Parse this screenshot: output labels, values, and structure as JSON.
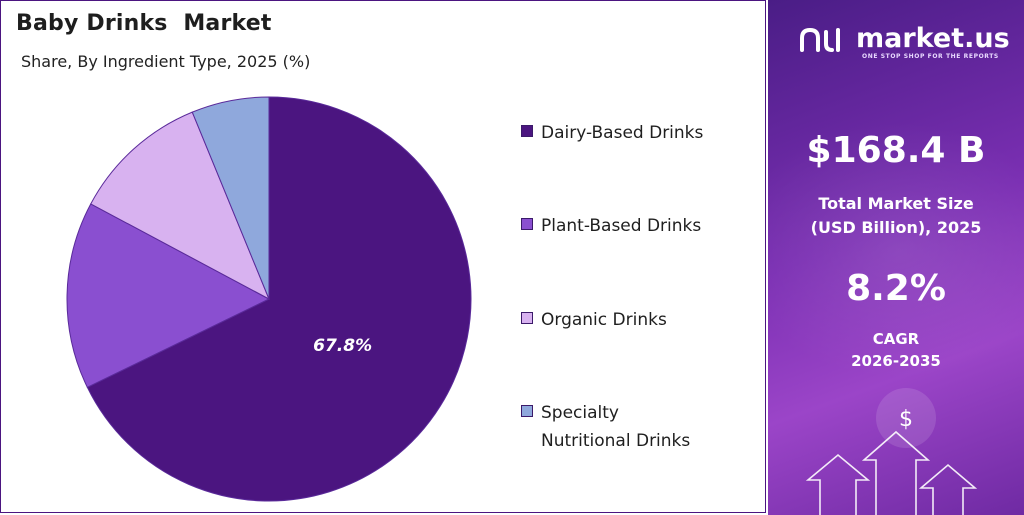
{
  "title": "Baby Drinks  Market",
  "subtitle": "Share, By Ingredient Type, 2025 (%)",
  "chart_data": {
    "type": "pie",
    "title": "Baby Drinks  Market",
    "subtitle": "Share, By Ingredient Type, 2025 (%)",
    "categories": [
      "Dairy-Based Drinks",
      "Plant-Based Drinks",
      "Organic Drinks",
      "Specialty Nutritional Drinks"
    ],
    "values": [
      67.8,
      15.0,
      11.0,
      6.2
    ],
    "data_labels": [
      "67.8%",
      "",
      "",
      ""
    ],
    "colors": [
      "#4b1580",
      "#8a4fd0",
      "#d8b2f0",
      "#8fa8dc"
    ],
    "legend_position": "right"
  },
  "legend": [
    {
      "label": "Dairy-Based Drinks",
      "color": "#4b1580"
    },
    {
      "label": "Plant-Based Drinks",
      "color": "#8a4fd0"
    },
    {
      "label": "Organic Drinks",
      "color": "#d8b2f0"
    },
    {
      "label": "Specialty Nutritional Drinks",
      "color": "#8fa8dc"
    }
  ],
  "panel": {
    "brand": "market.us",
    "tagline": "ONE STOP SHOP FOR THE REPORTS",
    "market_size_value": "$168.4 B",
    "market_size_label_line1": "Total Market Size",
    "market_size_label_line2": "(USD Billion), 2025",
    "cagr_value": "8.2%",
    "cagr_label_line1": "CAGR",
    "cagr_label_line2": "2026-2035",
    "dollar_symbol": "$"
  }
}
